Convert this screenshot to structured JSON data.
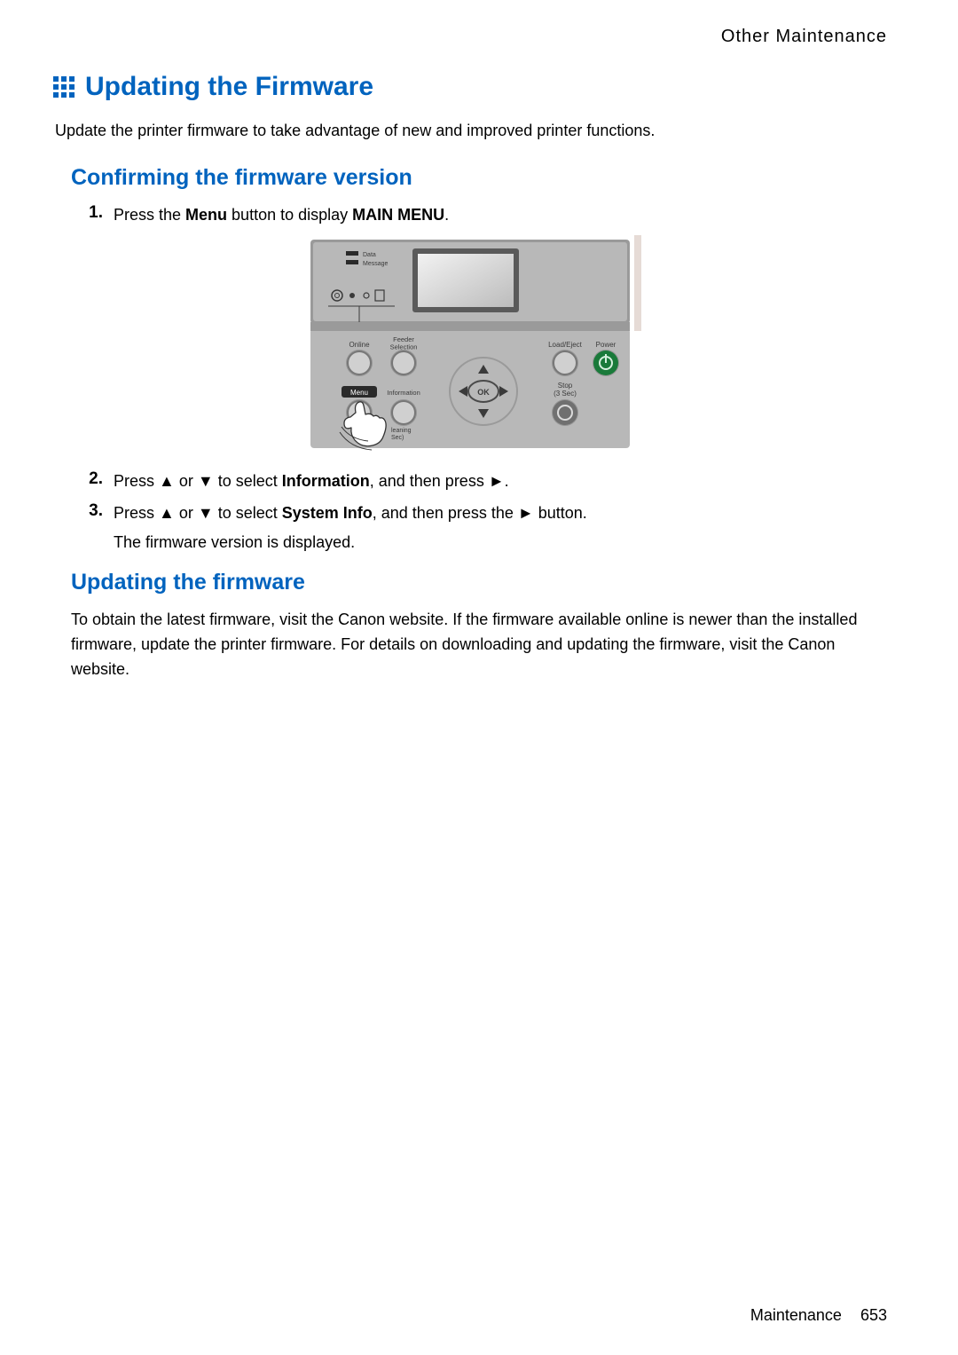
{
  "header": {
    "section": "Other Maintenance"
  },
  "title": {
    "text": "Updating the Firmware",
    "color": "#0063be",
    "fontsize": 30
  },
  "intro": "Update the printer firmware to take advantage of new and improved printer functions.",
  "section1": {
    "heading": "Confirming the firmware version",
    "color": "#0063be",
    "steps": [
      {
        "num": "1.",
        "pre": "Press the ",
        "bold1": "Menu",
        "mid": " button to display ",
        "bold2": "MAIN MENU",
        "post": "."
      },
      {
        "num": "2.",
        "text_parts": [
          "Press ",
          "▲",
          " or ",
          "▼",
          " to select ",
          "Information",
          ", and then press ",
          "►",
          "."
        ]
      },
      {
        "num": "3.",
        "text_parts": [
          "Press ",
          "▲",
          " or ",
          "▼",
          " to select ",
          "System Info",
          ", and then press the ",
          "►",
          " button."
        ]
      }
    ],
    "followup": "The firmware version is displayed."
  },
  "section2": {
    "heading": "Updating the firmware",
    "color": "#0063be",
    "body": "To obtain the latest firmware, visit the Canon website. If the firmware available online is newer than the installed firmware, update the printer firmware. For details on downloading and updating the firmware, visit the Canon website."
  },
  "panel": {
    "labels": {
      "data": "Data",
      "message": "Message",
      "online": "Online",
      "feeder": "Feeder\nSelection",
      "menu": "Menu",
      "information": "Information",
      "loadEject": "Load/Eject",
      "power": "Power",
      "stop": "Stop\n(3 Sec)",
      "cleaning": "leaning\n Sec)",
      "ok": "OK"
    },
    "colors": {
      "body": "#b8b8b8",
      "bodyDark": "#9a9a9a",
      "screenBorder": "#5a5a5a",
      "screenFill": "#cfcfcf",
      "text": "#3a3a3a",
      "menuBg": "#2a2a2a",
      "menuText": "#ffffff",
      "btnRing": "#777777",
      "btnFill": "#d0d0d0",
      "btnShadow": "#555555",
      "powerGreen": "#1a7a3a",
      "stopFill": "#707070",
      "okRing": "#4a4a4a",
      "hand": "#ffffff",
      "handStroke": "#333333",
      "sideStrip": "#9c6e5c"
    }
  },
  "footer": {
    "label": "Maintenance",
    "page": "653"
  }
}
